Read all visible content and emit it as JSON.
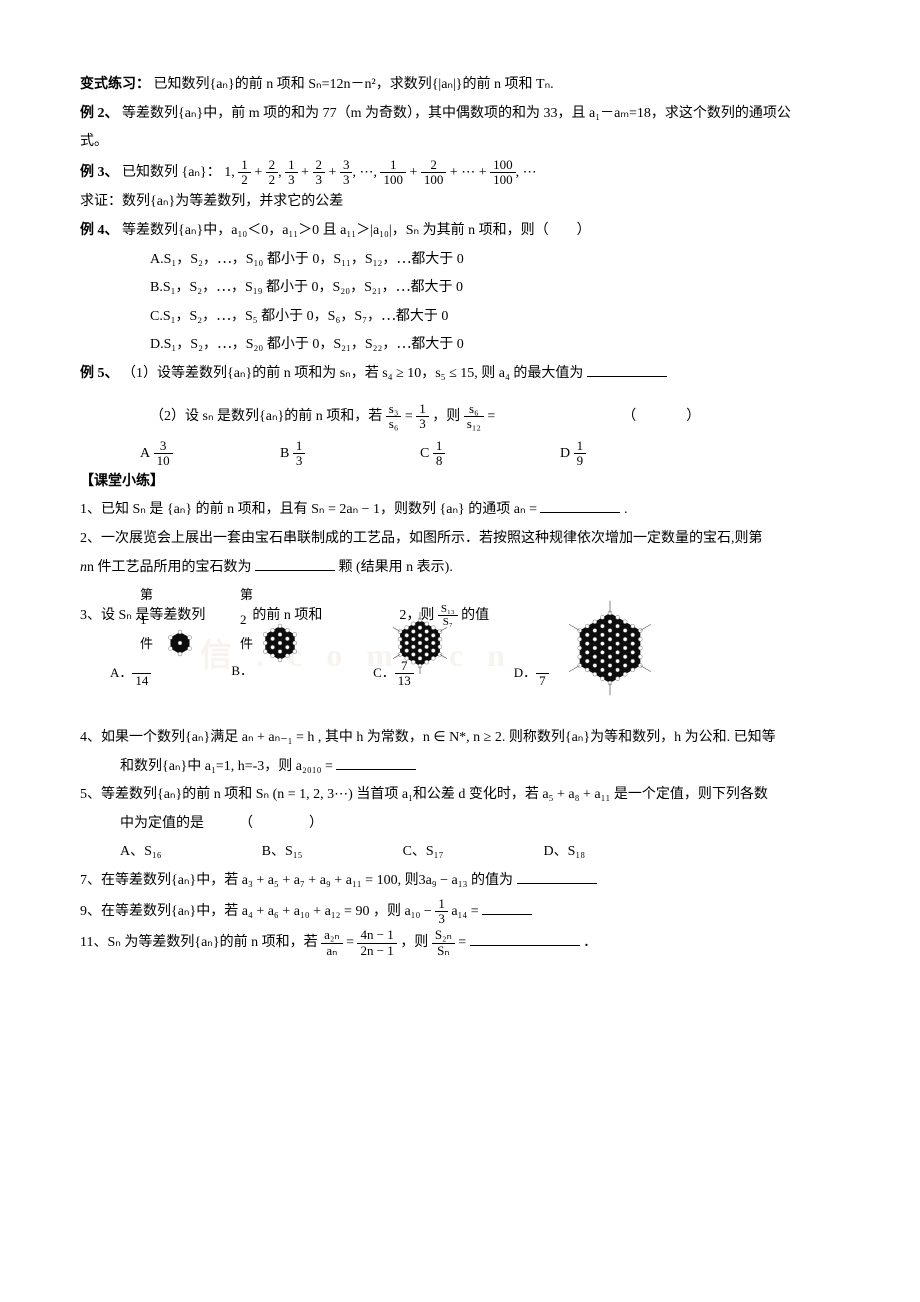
{
  "p_bianshi": {
    "label": "变式练习：",
    "text": "已知数列{aₙ}的前 n 项和 Sₙ=12n－n²，求数列{|aₙ|}的前 n 项和 Tₙ."
  },
  "ex2": {
    "label": "例 2、",
    "text1": "等差数列{aₙ}中，前 m 项的和为 77（m 为奇数），其中偶数项的和为 33，且 a₁－aₘ=18，求这个数列的通项公",
    "text2": "式。"
  },
  "ex3": {
    "label": "例 3、",
    "lead": "已知数列",
    "seq_set": "{aₙ}：",
    "series": "1, ½+⁲⁄₂, ⅓+⅔+³⁄₃, ⋯, ¹⁄₁₀₀+²⁄₁₀₀+⋯+¹⁰⁰⁄₁₀₀, ⋯",
    "prove": "求证：数列{aₙ}为等差数列，并求它的公差"
  },
  "ex4": {
    "label": "例 4、",
    "stem": "等差数列{aₙ}中，a₁₀＜0，a₁₁＞0 且 a₁₁＞|a₁₀|，Sₙ 为其前 n 项和，则（　　）",
    "A": "A.S₁，S₂，⋯，S₁₀ 都小于 0，S₁₁，S₁₂，⋯都大于 0",
    "B": "B.S₁，S₂，⋯，S₁₉ 都小于 0，S₂₀，S₂₁，⋯都大于 0",
    "C": "C.S₁，S₂，⋯，S₅ 都小于 0，S₆，S₇，⋯都大于 0",
    "D": "D.S₁，S₂，⋯，S₂₀ 都小于 0，S₂₁，S₂₂，⋯都大于 0"
  },
  "ex5": {
    "label": "例 5、",
    "part1": "（1）设等差数列{aₙ}的前 n 项和为 sₙ，若 s₄ ≥ 10，s₅ ≤ 15, 则 a₄ 的最大值为",
    "part2a": "（2）设 sₙ 是数列{aₙ}的前 n 项和，若 ",
    "part2_frac1": {
      "num": "s₃",
      "den": "s₆"
    },
    "part2_mid": " = ",
    "part2_frac2": {
      "num": "1",
      "den": "3"
    },
    "part2b": "，则 ",
    "part2_frac3": {
      "num": "s₆",
      "den": "s₁₂"
    },
    "part2c": " = ",
    "part2_paren": "（　　　）",
    "opts": {
      "A": {
        "label": "A",
        "num": "3",
        "den": "10"
      },
      "B": {
        "label": "B",
        "num": "1",
        "den": "3"
      },
      "C": {
        "label": "C",
        "num": "1",
        "den": "8"
      },
      "D": {
        "label": "D",
        "num": "1",
        "den": "9"
      }
    }
  },
  "section": {
    "title": "【课堂小练】"
  },
  "q1": {
    "text1": "1、已知 Sₙ 是 {aₙ} 的前 n 项和，且有 Sₙ = 2aₙ − 1，则数列 {aₙ} 的通项 aₙ = ",
    "tail": "."
  },
  "q2": {
    "line1": "2、一次展览会上展出一套由宝石串联制成的工艺品，如图所示．若按照这种规律依次增加一定数量的宝石,则第",
    "line2a": "n 件工艺品所用的宝石数为 ",
    "line2b": " 颗 (结果用 n 表示)."
  },
  "hex": {
    "label1": "第 1 件",
    "label2": "第 2 件",
    "sizes": [
      22,
      34,
      46,
      70
    ],
    "fill": "#0d0d0d",
    "dot_fill": "#ffffff",
    "dot_r": 2.0,
    "stroke": "#555555"
  },
  "q3": {
    "pre": "3、设 Sₙ 是等差数列",
    "mid1": "的前 n 项和",
    "mid2": "2，则 ",
    "ratio": {
      "num": "S₁₃",
      "den": "S₇"
    },
    "after": " 的值",
    "opts": {
      "A": {
        "label": "A．",
        "den": "14"
      },
      "B": {
        "label": "B．",
        "den": ""
      },
      "C": {
        "label": "C．",
        "num": "7",
        "den": "13"
      },
      "D": {
        "label": "D．",
        "den": "7"
      }
    }
  },
  "q4": {
    "line1": "4、如果一个数列{aₙ}满足 aₙ + aₙ₋₁ = h , 其中 h 为常数，n ∈ N*, n ≥ 2. 则称数列{aₙ}为等和数列，h 为公和. 已知等",
    "line2a": "和数列{aₙ}中 a₁=1, h=-3，则 a₂₀₁₀ = "
  },
  "q5": {
    "line1": "5、等差数列{aₙ}的前 n 项和 Sₙ (n = 1, 2, 3⋯) 当首项 a₁和公差 d 变化时，若 a₅ + a₈ + a₁₁ 是一个定值，则下列各数",
    "line2": "中为定值的是　　　（　　　　）",
    "opts": {
      "A": "A、S₁₆",
      "B": "B、S₁₅",
      "C": "C、S₁₇",
      "D": "D、S₁₈"
    }
  },
  "q7": {
    "text": "7、在等差数列{aₙ}中，若 a₃ + a₅ + a₇ + a₉ + a₁₁ = 100, 则3a₉ − a₁₃ 的值为"
  },
  "q9": {
    "text": "9、在等差数列{aₙ}中，若 a₄ + a₆ + a₁₀ + a₁₂ = 90 ，则 a₁₀ − ",
    "frac": {
      "num": "1",
      "den": "3"
    },
    "text2": "a₁₄ = "
  },
  "q11": {
    "text1": "11、Sₙ 为等差数列{aₙ}的前 n 项和，若 ",
    "frac1": {
      "num": "a₂ₙ",
      "den": "aₙ"
    },
    "mid": " = ",
    "frac2": {
      "num": "4n − 1",
      "den": "2n − 1"
    },
    "text2": "，则 ",
    "frac3": {
      "num": "S₂ₙ",
      "den": "Sₙ"
    },
    "text3": " = ",
    "tail": "．"
  },
  "colors": {
    "text": "#000000",
    "bg": "#ffffff",
    "watermark": "#f7f4ef"
  },
  "font": {
    "base_pt": 10.5,
    "family": "SimSun"
  }
}
